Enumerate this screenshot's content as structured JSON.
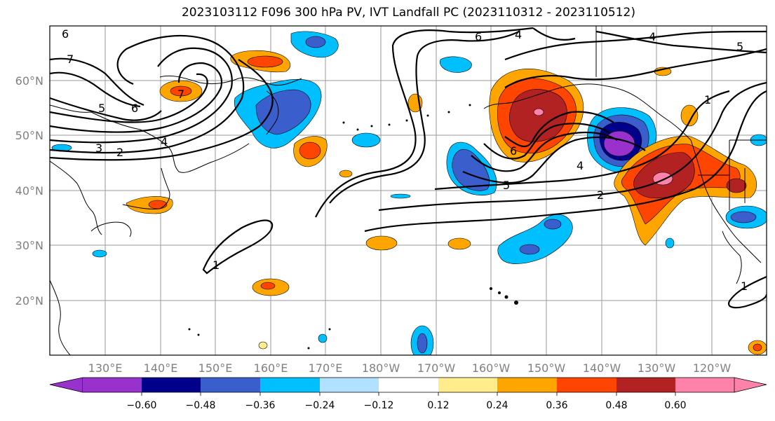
{
  "title": "2023103112 F096 300 hPa PV, IVT Landfall PC (2023110312 - 2023110512)",
  "longitude_labels": [
    "130°E",
    "140°E",
    "150°E",
    "160°E",
    "170°E",
    "180°W",
    "170°W",
    "160°W",
    "150°W",
    "140°W",
    "130°W",
    "120°W"
  ],
  "latitude_labels": [
    "60°N",
    "50°N",
    "40°N",
    "30°N",
    "20°N"
  ],
  "colorbar": {
    "tick_labels": [
      "−0.60",
      "−0.48",
      "−0.36",
      "−0.24",
      "−0.12",
      "0.12",
      "0.24",
      "0.36",
      "0.48",
      "0.60"
    ],
    "colors": [
      "#9932CC",
      "#00008B",
      "#3A5FCD",
      "#00BFFF",
      "#B0E2FF",
      "#FFFFFF",
      "#FFEC8B",
      "#FFA500",
      "#FF4500",
      "#B22222",
      "#FF82AB"
    ]
  },
  "contour_labels": [
    {
      "id": "c-6a",
      "text": "6"
    },
    {
      "id": "c-7a",
      "text": "7"
    },
    {
      "id": "c-5a",
      "text": "5"
    },
    {
      "id": "c-6b",
      "text": "6"
    },
    {
      "id": "c-3a",
      "text": "3"
    },
    {
      "id": "c-2a",
      "text": "2"
    },
    {
      "id": "c-4a",
      "text": "4"
    },
    {
      "id": "c-7b",
      "text": "7"
    },
    {
      "id": "c-1a",
      "text": "1"
    },
    {
      "id": "c-4b",
      "text": "4"
    },
    {
      "id": "c-6c",
      "text": "6"
    },
    {
      "id": "c-4c",
      "text": "4"
    },
    {
      "id": "c-6d",
      "text": "6"
    },
    {
      "id": "c-5b",
      "text": "5"
    },
    {
      "id": "c-2b",
      "text": "2"
    },
    {
      "id": "c-1b",
      "text": "1"
    },
    {
      "id": "c-1c",
      "text": "1"
    },
    {
      "id": "c-5c",
      "text": "5"
    },
    {
      "id": "c-4d",
      "text": "4"
    }
  ]
}
